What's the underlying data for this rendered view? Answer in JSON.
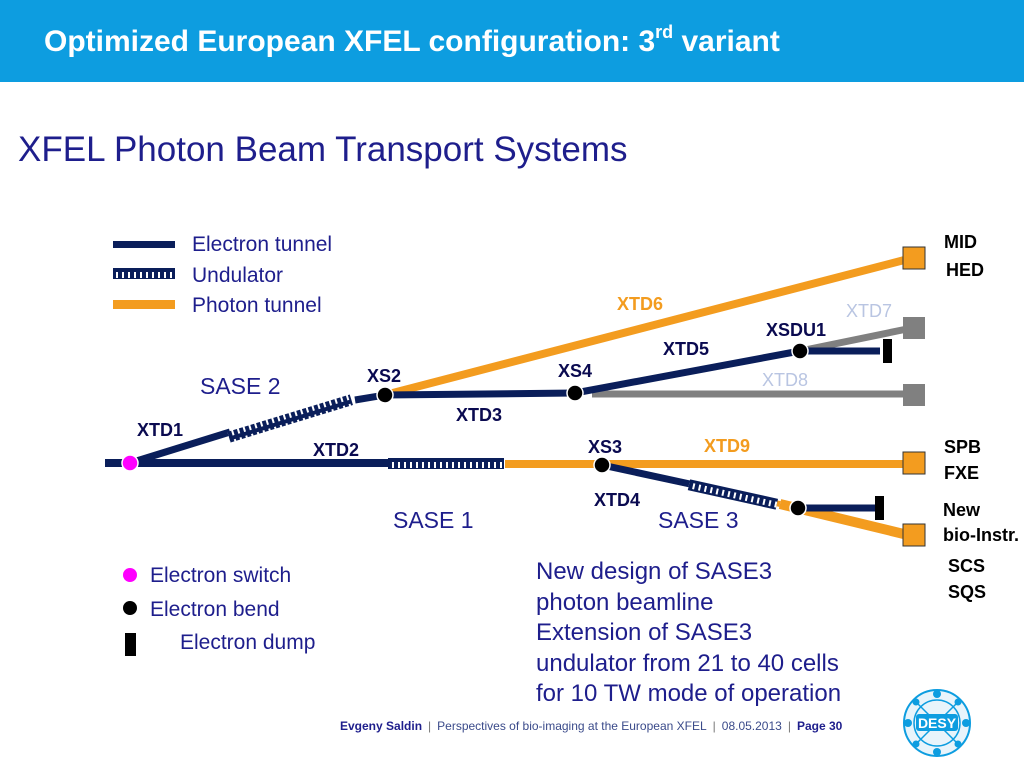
{
  "header": {
    "title_main": "Optimized European XFEL configuration: 3",
    "title_sup": "rd",
    "title_end": " variant"
  },
  "subtitle": "XFEL Photon Beam Transport Systems",
  "legend": {
    "electron_tunnel": "Electron tunnel",
    "undulator": "Undulator",
    "photon_tunnel": "Photon tunnel",
    "electron_switch": "Electron switch",
    "electron_bend": "Electron bend",
    "electron_dump": "Electron dump"
  },
  "labels": {
    "xtd1": "XTD1",
    "xtd2": "XTD2",
    "xtd3": "XTD3",
    "xtd4": "XTD4",
    "xtd5": "XTD5",
    "xtd6": "XTD6",
    "xtd7": "XTD7",
    "xtd8": "XTD8",
    "xtd9": "XTD9",
    "xs2": "XS2",
    "xs3": "XS3",
    "xs4": "XS4",
    "xsdu1": "XSDU1",
    "sase1": "SASE 1",
    "sase2": "SASE 2",
    "sase3": "SASE 3"
  },
  "instruments": {
    "mid": "MID",
    "hed": "HED",
    "spb": "SPB",
    "fxe": "FXE",
    "new": "New",
    "bio": "bio-Instr.",
    "scs": "SCS",
    "sqs": "SQS"
  },
  "note": [
    "New design of SASE3",
    "photon beamline",
    "Extension of SASE3",
    "undulator from 21 to 40 cells",
    "for 10 TW mode of operation"
  ],
  "footer": {
    "author": "Evgeny Saldin",
    "talk": "Perspectives of bio-imaging at the European XFEL",
    "date": "08.05.2013",
    "page": "Page 30"
  },
  "logo_text": "DESY",
  "colors": {
    "header": "#0d9de0",
    "electron": "#0a1e5a",
    "photon": "#f39c1f",
    "inactive": "#808080",
    "switch": "#ff00ff"
  }
}
